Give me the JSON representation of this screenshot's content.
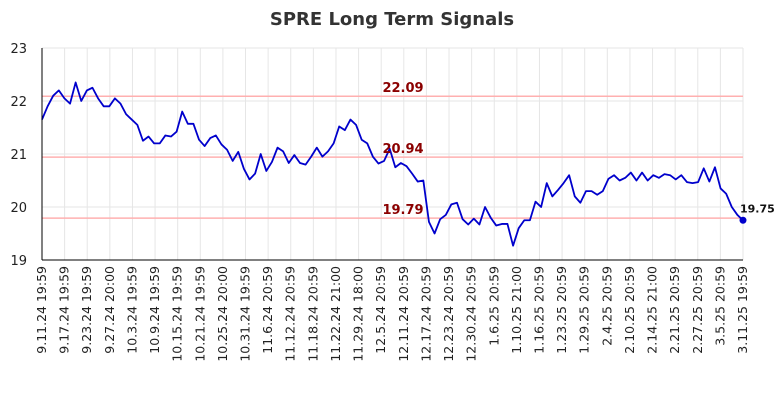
{
  "chart_data": {
    "type": "line",
    "title": "SPRE Long Term Signals",
    "xlabel": "",
    "ylabel": "",
    "ylim": [
      19,
      23
    ],
    "yticks": [
      "19",
      "20",
      "21",
      "22",
      "23"
    ],
    "grid": true,
    "colors": {
      "line": "#0000cc",
      "level": "#ffb0b0",
      "level_label": "#8b0000",
      "grid": "#e6e6e6"
    },
    "x_tick_labels": [
      "9.11.24 19:59",
      "9.17.24 19:59",
      "9.23.24 19:59",
      "9.27.24 20:00",
      "10.3.24 19:59",
      "10.9.24 19:59",
      "10.15.24 19:59",
      "10.21.24 19:59",
      "10.25.24 20:00",
      "10.31.24 19:59",
      "11.6.24 20:59",
      "11.12.24 20:59",
      "11.18.24 20:59",
      "11.22.24 21:00",
      "11.29.24 18:00",
      "12.5.24 20:59",
      "12.11.24 20:59",
      "12.17.24 20:59",
      "12.23.24 20:59",
      "12.30.24 20:59",
      "1.6.25 20:59",
      "1.10.25 21:00",
      "1.16.25 20:59",
      "1.23.25 20:59",
      "1.29.25 20:59",
      "2.4.25 20:59",
      "2.10.25 20:59",
      "2.14.25 21:00",
      "2.21.25 20:59",
      "2.27.25 20:59",
      "3.5.25 20:59",
      "3.11.25 19:59"
    ],
    "series": [
      {
        "values": [
          21.65,
          21.9,
          22.1,
          22.2,
          22.05,
          21.95,
          22.35,
          22.0,
          22.2,
          22.25,
          22.05,
          21.9,
          21.9,
          22.05,
          21.95,
          21.75,
          21.65,
          21.55,
          21.25,
          21.33,
          21.2,
          21.2,
          21.35,
          21.33,
          21.42,
          21.8,
          21.57,
          21.57,
          21.27,
          21.15,
          21.3,
          21.35,
          21.18,
          21.08,
          20.87,
          21.04,
          20.72,
          20.52,
          20.63,
          21.0,
          20.68,
          20.85,
          21.12,
          21.05,
          20.83,
          20.98,
          20.83,
          20.8,
          20.95,
          21.12,
          20.95,
          21.05,
          21.2,
          21.52,
          21.45,
          21.65,
          21.55,
          21.27,
          21.2,
          20.95,
          20.82,
          20.87,
          21.1,
          20.75,
          20.83,
          20.77,
          20.63,
          20.48,
          20.5,
          19.72,
          19.5,
          19.77,
          19.85,
          20.05,
          20.08,
          19.77,
          19.67,
          19.78,
          19.67,
          20.0,
          19.8,
          19.65,
          19.68,
          19.68,
          19.27,
          19.6,
          19.75,
          19.75,
          20.1,
          20.0,
          20.45,
          20.2,
          20.32,
          20.45,
          20.6,
          20.2,
          20.08,
          20.3,
          20.3,
          20.23,
          20.3,
          20.53,
          20.6,
          20.5,
          20.55,
          20.65,
          20.5,
          20.65,
          20.5,
          20.6,
          20.55,
          20.62,
          20.6,
          20.52,
          20.6,
          20.47,
          20.45,
          20.47,
          20.73,
          20.48,
          20.75,
          20.35,
          20.25,
          20.0,
          19.85,
          19.75
        ]
      }
    ],
    "levels": [
      {
        "value": 22.09,
        "label": "22.09"
      },
      {
        "value": 20.94,
        "label": "20.94"
      },
      {
        "value": 19.79,
        "label": "19.79"
      }
    ],
    "last_value_label": "19.75"
  }
}
